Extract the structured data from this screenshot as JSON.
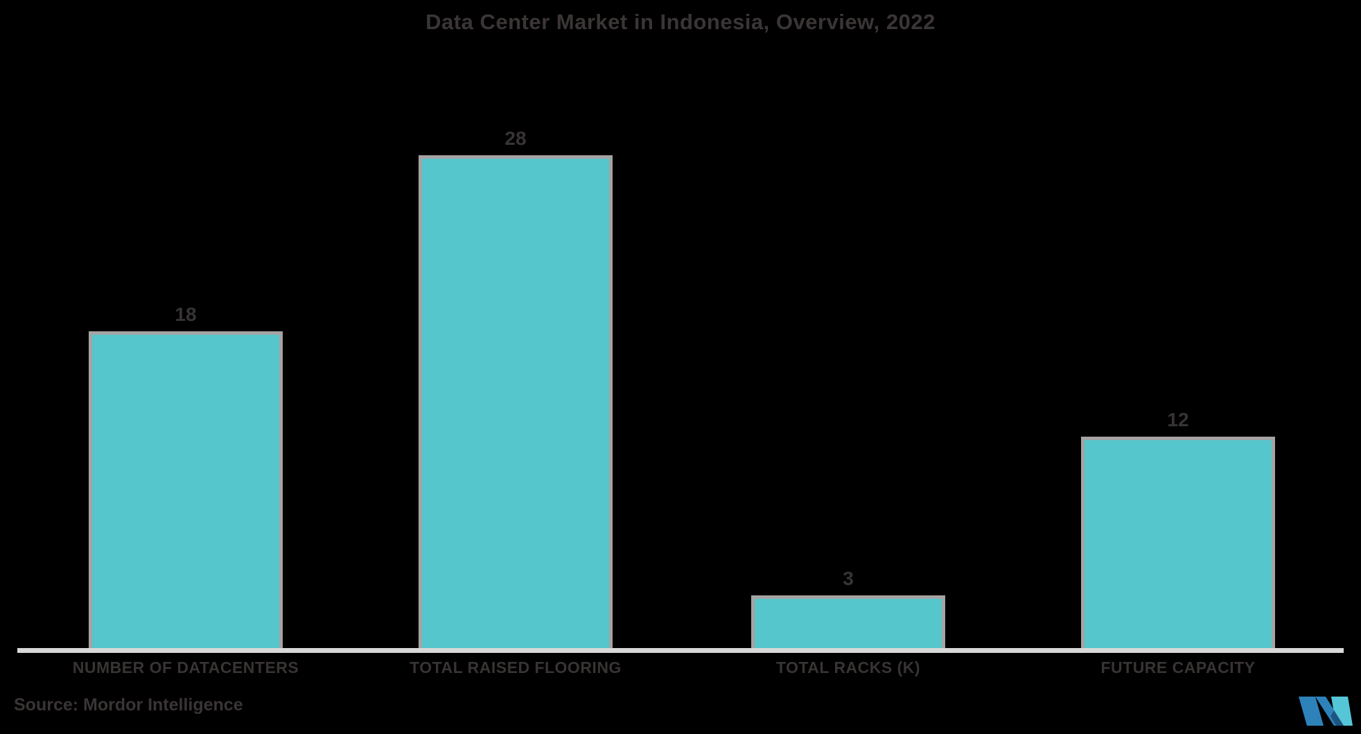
{
  "title": "Data Center Market in Indonesia, Overview, 2022",
  "source_note": "Source: Mordor Intelligence",
  "logo_name": "mordor-intelligence-logo",
  "colors": {
    "background": "#000000",
    "bar_fill": "#55c6cb",
    "bar_border": "#a5a3a3",
    "axis_line": "#d8d8d8",
    "text_dark": "#3b3636",
    "logo_blue": "#2e82ba",
    "logo_cyan": "#55c6d8",
    "logo_navy": "#1d5580"
  },
  "chart_data": {
    "type": "bar",
    "title": "Data Center Market in Indonesia, Overview, 2022",
    "categories": [
      "NUMBER OF DATACENTERS",
      "TOTAL RAISED FLOORING",
      "TOTAL RACKS (K)",
      "FUTURE CAPACITY"
    ],
    "values": [
      18,
      28,
      3,
      12
    ],
    "value_labels": [
      "18",
      "28",
      "3",
      "12"
    ],
    "xlabel": "",
    "ylabel": "",
    "ylim": [
      0,
      28
    ],
    "grid": false,
    "legend": false,
    "axes_shown": false,
    "value_labels_position": "above-bars",
    "bar_color": "#55c6cb"
  }
}
